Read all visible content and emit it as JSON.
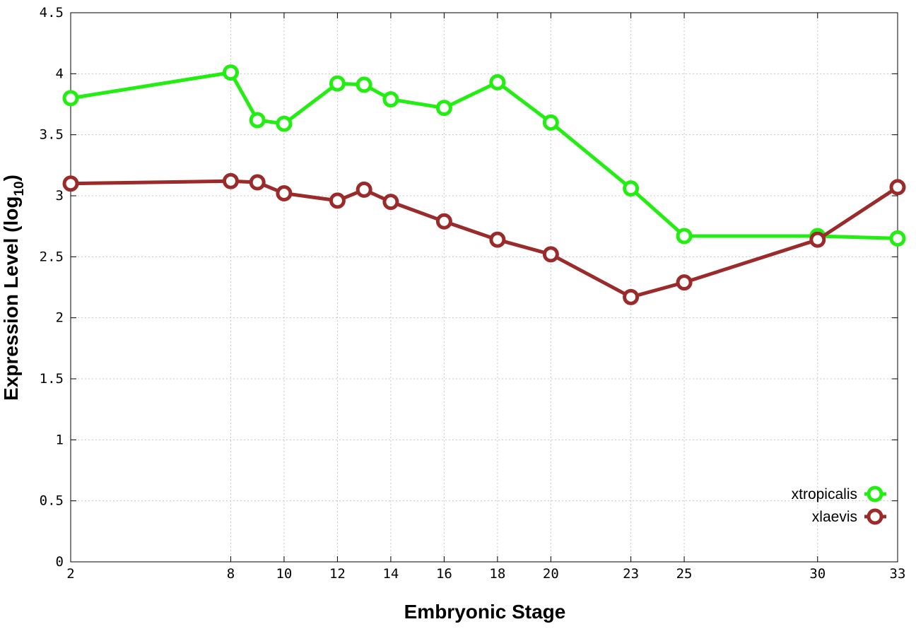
{
  "chart_data": {
    "type": "line",
    "xlabel": "Embryonic Stage",
    "ylabel": "Expression Level (log",
    "ylabel_subscript": "10",
    "ylabel_suffix": ")",
    "x": [
      2,
      8,
      9,
      10,
      12,
      13,
      14,
      16,
      18,
      20,
      23,
      25,
      30,
      33
    ],
    "x_ticks": [
      2,
      8,
      10,
      12,
      14,
      16,
      18,
      20,
      23,
      25,
      30,
      33
    ],
    "y_ticks": [
      "0",
      "0.5",
      "1",
      "1.5",
      "2",
      "2.5",
      "3",
      "3.5",
      "4",
      "4.5"
    ],
    "xlim": [
      2,
      33
    ],
    "ylim": [
      0,
      4.5
    ],
    "grid": true,
    "legend_position": "bottom-right",
    "series": [
      {
        "name": "xtropicalis",
        "color": "#22ee11",
        "values": [
          3.8,
          4.01,
          3.62,
          3.59,
          3.92,
          3.91,
          3.79,
          3.72,
          3.93,
          3.6,
          3.06,
          2.67,
          2.67,
          2.65
        ]
      },
      {
        "name": "xlaevis",
        "color": "#9b2a2a",
        "values": [
          3.1,
          3.12,
          3.11,
          3.02,
          2.96,
          3.05,
          2.95,
          2.79,
          2.64,
          2.52,
          2.17,
          2.29,
          2.64,
          3.07
        ]
      }
    ]
  }
}
